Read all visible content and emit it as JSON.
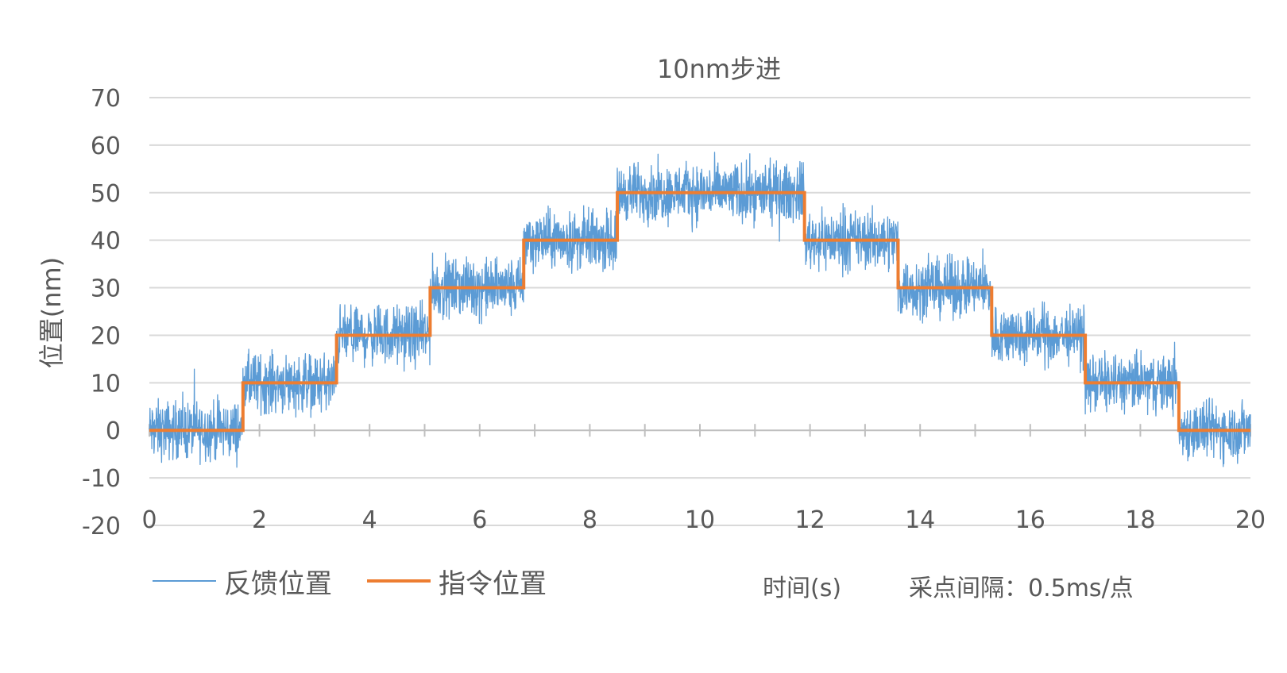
{
  "chart_data": {
    "type": "line",
    "title": "10nm步进",
    "xlabel": "时间(s)",
    "ylabel": "位置(nm)",
    "note": "采点间隔：0.5ms/点",
    "xlim": [
      0,
      20
    ],
    "ylim": [
      -20,
      70
    ],
    "xticks": [
      0,
      2,
      4,
      6,
      8,
      10,
      12,
      14,
      16,
      18,
      20
    ],
    "yticks": [
      -20,
      -10,
      0,
      10,
      20,
      30,
      40,
      50,
      60,
      70
    ],
    "grid": "horizontal",
    "legend_position": "bottom-left",
    "series": [
      {
        "name": "反馈位置",
        "color": "#5B9BD5",
        "style": "noisy",
        "noise_amplitude_nm": 5,
        "follows": "指令位置"
      },
      {
        "name": "指令位置",
        "color": "#ED7D31",
        "style": "step",
        "x": [
          0,
          1.7,
          3.4,
          5.1,
          6.8,
          8.5,
          11.9,
          13.6,
          15.3,
          17.0,
          18.7,
          20
        ],
        "y": [
          0,
          10,
          20,
          30,
          40,
          50,
          40,
          30,
          20,
          10,
          0,
          0
        ]
      }
    ]
  }
}
